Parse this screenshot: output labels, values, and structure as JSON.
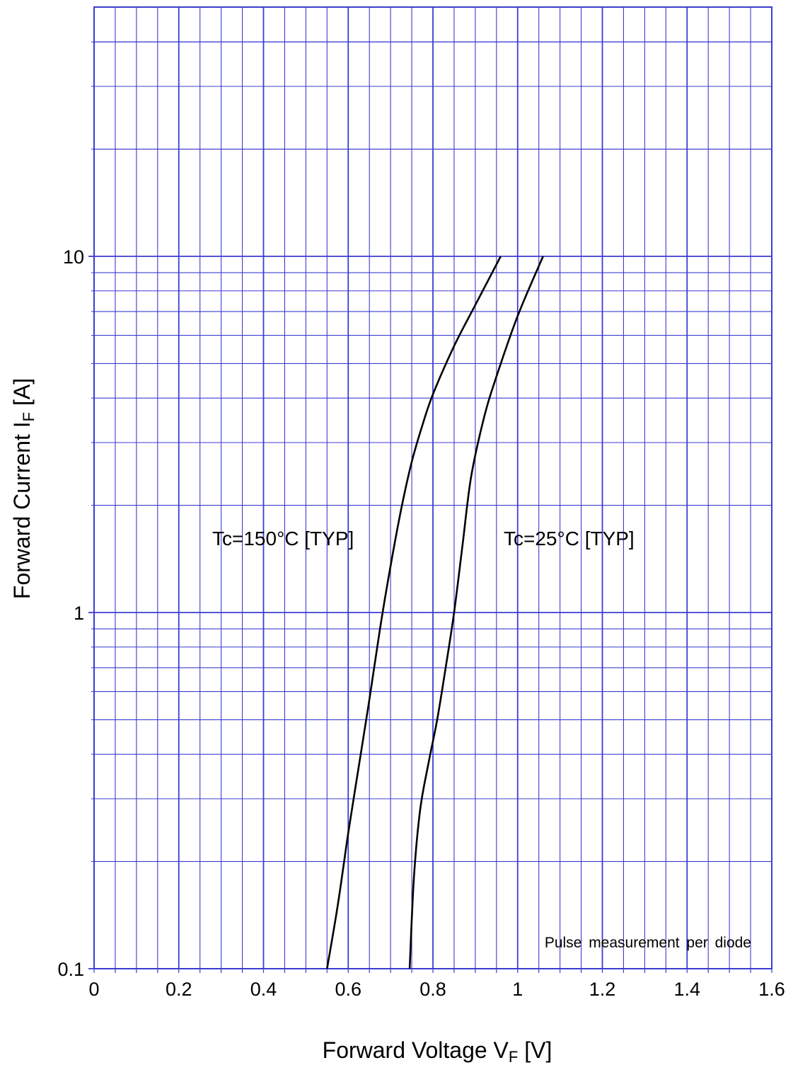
{
  "chart_data": {
    "type": "line",
    "x_scale": "linear",
    "y_scale": "log",
    "xlim": [
      0,
      1.6
    ],
    "ylim": [
      0.1,
      40
    ],
    "x_ticks": [
      0,
      0.2,
      0.4,
      0.6,
      0.8,
      1.0,
      1.2,
      1.4,
      1.6
    ],
    "x_tick_labels": [
      "0",
      "0.2",
      "0.4",
      "0.6",
      "0.8",
      "1",
      "1.2",
      "1.4",
      "1.6"
    ],
    "y_ticks": [
      0.1,
      1,
      10
    ],
    "y_tick_labels": [
      "0.1",
      "1",
      "10"
    ],
    "grid": true,
    "xlabel": {
      "main": "Forward Voltage  V",
      "sub": "F",
      "unit": "  [V]"
    },
    "ylabel": {
      "main": "Forward Current  I",
      "sub": "F",
      "unit": "  [A]"
    },
    "annotation": "Pulse measurement per diode",
    "series": [
      {
        "name": "Tc=150°C [TYP]",
        "points": [
          [
            0.55,
            0.1
          ],
          [
            0.575,
            0.15
          ],
          [
            0.6,
            0.24
          ],
          [
            0.625,
            0.37
          ],
          [
            0.65,
            0.57
          ],
          [
            0.675,
            0.9
          ],
          [
            0.7,
            1.35
          ],
          [
            0.725,
            1.95
          ],
          [
            0.75,
            2.65
          ],
          [
            0.775,
            3.35
          ],
          [
            0.8,
            4.1
          ],
          [
            0.85,
            5.6
          ],
          [
            0.9,
            7.3
          ],
          [
            0.96,
            10.0
          ]
        ]
      },
      {
        "name": "Tc=25°C [TYP]",
        "points": [
          [
            0.745,
            0.1
          ],
          [
            0.755,
            0.18
          ],
          [
            0.77,
            0.28
          ],
          [
            0.79,
            0.38
          ],
          [
            0.81,
            0.5
          ],
          [
            0.83,
            0.7
          ],
          [
            0.85,
            1.0
          ],
          [
            0.87,
            1.55
          ],
          [
            0.89,
            2.4
          ],
          [
            0.92,
            3.5
          ],
          [
            0.95,
            4.6
          ],
          [
            1.0,
            6.8
          ],
          [
            1.06,
            10.0
          ]
        ]
      }
    ]
  },
  "colors": {
    "grid": "#3c3cd2",
    "curve": "#000000",
    "text": "#000000"
  }
}
